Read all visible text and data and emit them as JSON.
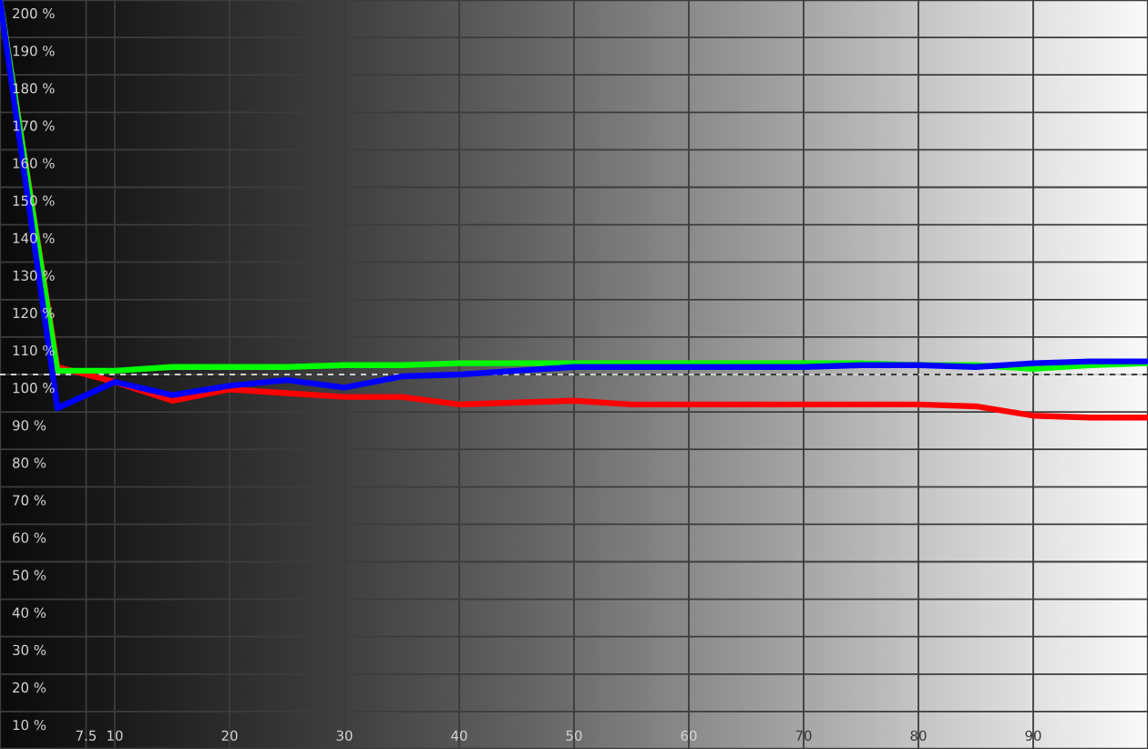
{
  "chart_data": {
    "type": "line",
    "x": [
      0,
      5,
      10,
      15,
      20,
      25,
      30,
      35,
      40,
      45,
      50,
      55,
      60,
      65,
      70,
      75,
      80,
      85,
      90,
      95,
      100
    ],
    "series": [
      {
        "color": "#ff0000",
        "values": [
          200,
          102,
          98,
          93,
          96,
          95,
          94,
          94,
          92,
          92.5,
          93,
          92,
          92,
          92,
          92,
          92,
          92,
          91.5,
          89,
          88.5,
          88.5
        ]
      },
      {
        "color": "#00ff00",
        "values": [
          200,
          101,
          101,
          102,
          102,
          102,
          102.5,
          102.5,
          103,
          103,
          103,
          103,
          103,
          103,
          103,
          103,
          102.5,
          102.5,
          101.5,
          102.5,
          103
        ]
      },
      {
        "color": "#0000ff",
        "values": [
          200,
          91,
          98,
          94.5,
          97,
          98.5,
          96.5,
          99.5,
          100,
          101,
          102,
          102,
          102,
          102,
          102,
          102.5,
          102.5,
          102,
          103,
          103.5,
          103.5
        ]
      }
    ],
    "xlim": [
      0,
      100
    ],
    "xticks": [
      7.5,
      10,
      20,
      30,
      40,
      50,
      60,
      70,
      80,
      90
    ],
    "ylim": [
      0,
      200
    ],
    "yticks": [
      {
        "value": 10,
        "label": "10 %"
      },
      {
        "value": 20,
        "label": "20 %"
      },
      {
        "value": 30,
        "label": "30 %"
      },
      {
        "value": 40,
        "label": "40 %"
      },
      {
        "value": 50,
        "label": "50 %"
      },
      {
        "value": 60,
        "label": "60 %"
      },
      {
        "value": 70,
        "label": "70 %"
      },
      {
        "value": 80,
        "label": "80 %"
      },
      {
        "value": 90,
        "label": "90 %"
      },
      {
        "value": 100,
        "label": "100 %"
      },
      {
        "value": 110,
        "label": "110 %"
      },
      {
        "value": 120,
        "label": "120 %"
      },
      {
        "value": 130,
        "label": "130 %"
      },
      {
        "value": 140,
        "label": "140 %"
      },
      {
        "value": 150,
        "label": "150 %"
      },
      {
        "value": 160,
        "label": "160 %"
      },
      {
        "value": 170,
        "label": "170 %"
      },
      {
        "value": 180,
        "label": "180 %"
      },
      {
        "value": 190,
        "label": "190 %"
      },
      {
        "value": 200,
        "label": "200 %"
      }
    ],
    "grid": true,
    "ref_lines": [
      {
        "axis": "y",
        "value": 100,
        "line_style": "dashed",
        "color": "#ffffff"
      }
    ]
  }
}
